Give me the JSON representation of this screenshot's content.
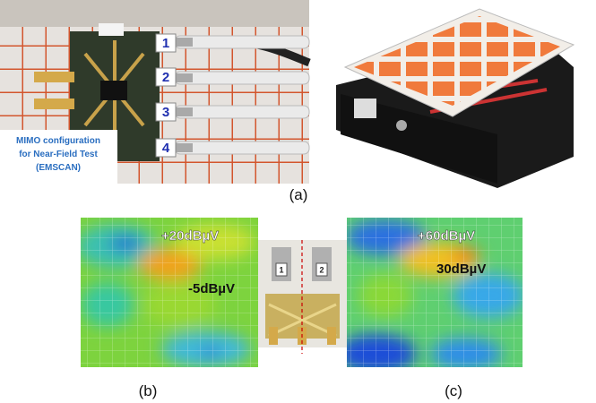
{
  "figure": {
    "panel_a": {
      "caption": "(a)",
      "annotation": [
        "MIMO configuration",
        "for Near-Field Test",
        "(EMSCAN)"
      ],
      "ports": [
        "1",
        "2",
        "3",
        "4"
      ]
    },
    "panel_b": {
      "caption": "(b)",
      "labels": [
        "+20dBµV",
        "-5dBµV"
      ]
    },
    "panel_middle": {
      "ports": [
        "1",
        "2"
      ]
    },
    "panel_c": {
      "caption": "(c)",
      "labels": [
        "+60dBµV",
        "30dBµV"
      ]
    }
  }
}
